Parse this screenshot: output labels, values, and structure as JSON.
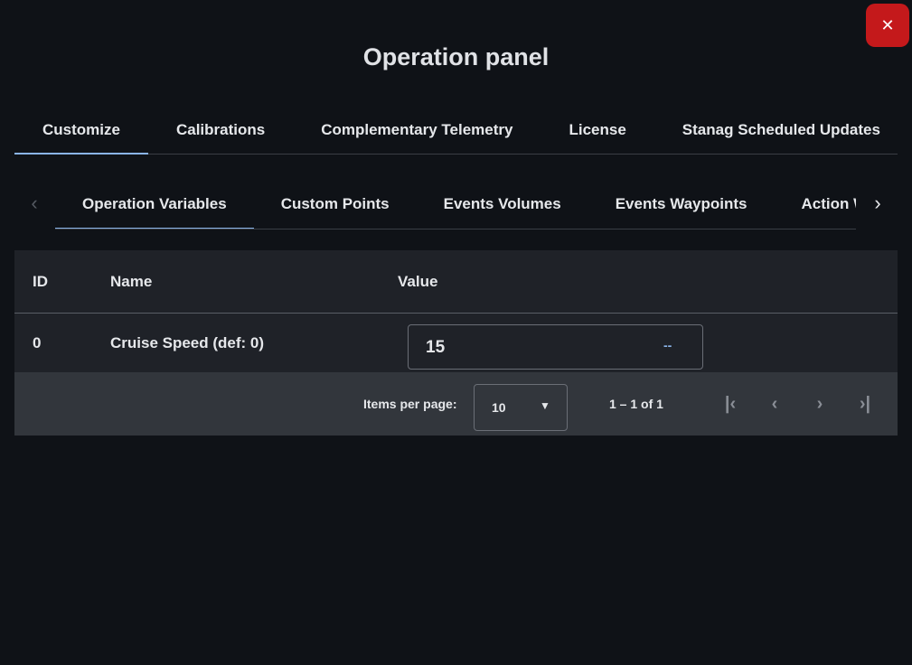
{
  "dialog": {
    "title": "Operation panel",
    "close_icon": "close-icon",
    "close_color": "#c4191b"
  },
  "tabs": [
    {
      "label": "Customize",
      "active": true
    },
    {
      "label": "Calibrations"
    },
    {
      "label": "Complementary Telemetry"
    },
    {
      "label": "License"
    },
    {
      "label": "Stanag Scheduled Updates"
    }
  ],
  "subtabs": [
    {
      "label": "Operation Variables",
      "active": true
    },
    {
      "label": "Custom Points"
    },
    {
      "label": "Events Volumes"
    },
    {
      "label": "Events Waypoints"
    },
    {
      "label": "Action Wa"
    }
  ],
  "table": {
    "columns": [
      "ID",
      "Name",
      "Value"
    ],
    "rows": [
      {
        "id": "0",
        "name": "Cruise Speed (def: 0)",
        "value": "15",
        "unit": "--"
      }
    ]
  },
  "pager": {
    "items_label": "Items per page:",
    "page_size": "10",
    "range": "1 – 1 of 1"
  },
  "accent": "#8ab4e8"
}
